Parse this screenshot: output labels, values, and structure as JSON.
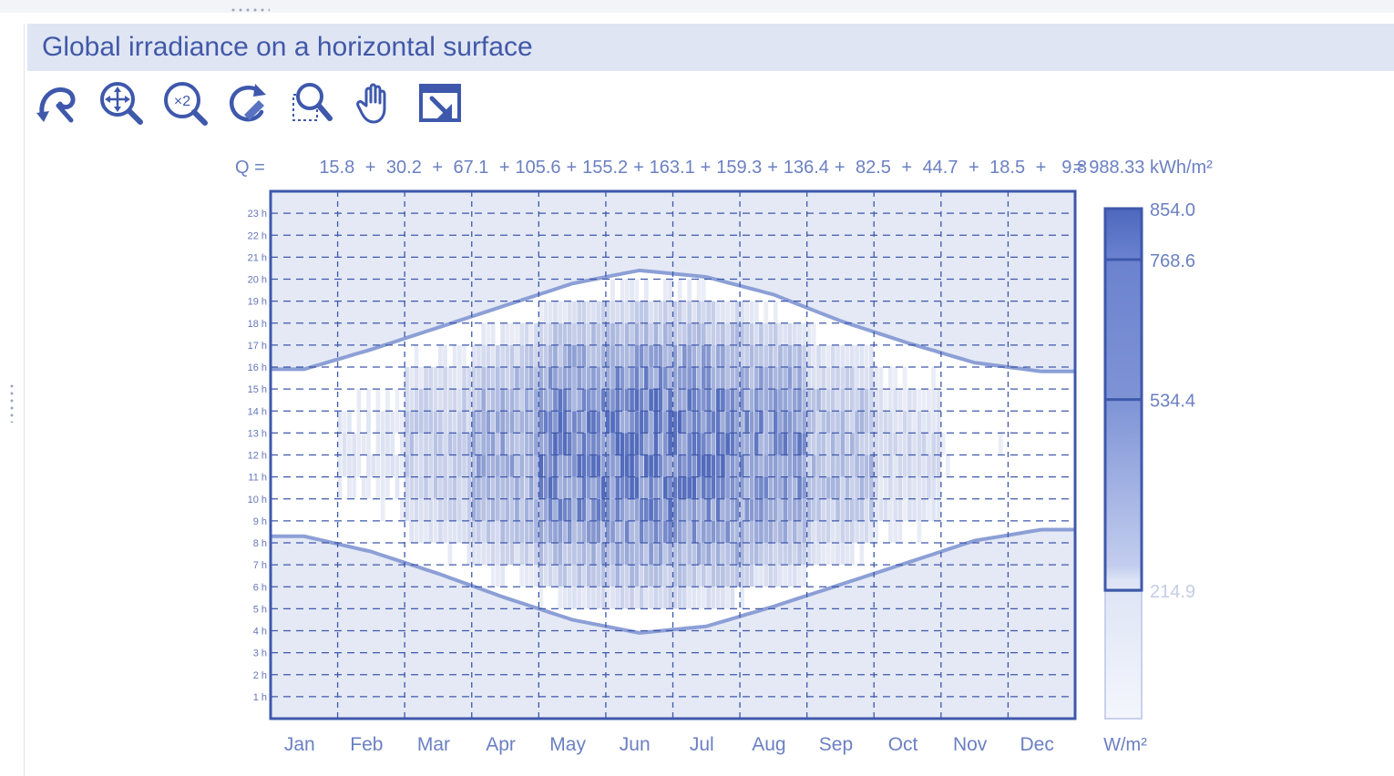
{
  "panel": {
    "title": "Global irradiance on a horizontal surface"
  },
  "toolbar": {
    "buttons": [
      {
        "icon": "rotate-back-icon"
      },
      {
        "icon": "zoom-all-icon"
      },
      {
        "icon": "zoom-x2-icon"
      },
      {
        "icon": "refresh-icon"
      },
      {
        "icon": "zoom-window-icon"
      },
      {
        "icon": "pan-hand-icon"
      },
      {
        "icon": "export-icon"
      }
    ]
  },
  "colors": {
    "accent": "#4a64b0",
    "title_bg": "#dfe5f3",
    "frame": "#3e58ab",
    "night_shade": "#e4e9f5"
  },
  "chart_data": {
    "type": "heatmap",
    "title": "Global irradiance on a horizontal surface",
    "summary": {
      "prefix": "Q =",
      "terms": [
        "15.8",
        "30.2",
        "67.1",
        "105.6",
        "155.2",
        "163.1",
        "159.3",
        "136.4",
        "82.5",
        "44.7",
        "18.5",
        "9.8"
      ],
      "total": "= 988.33 kWh/m²"
    },
    "monthly_Q_kWh_m2": [
      15.8,
      30.2,
      67.1,
      105.6,
      155.2,
      163.1,
      159.3,
      136.4,
      82.5,
      44.7,
      18.5,
      9.8
    ],
    "total_Q_kWh_m2": 988.33,
    "x": {
      "categories": [
        "Jan",
        "Feb",
        "Mar",
        "Apr",
        "May",
        "Jun",
        "Jul",
        "Aug",
        "Sep",
        "Oct",
        "Nov",
        "Dec"
      ]
    },
    "y": {
      "labels": [
        "1 h",
        "2 h",
        "3 h",
        "4 h",
        "5 h",
        "6 h",
        "7 h",
        "8 h",
        "9 h",
        "10 h",
        "11 h",
        "12 h",
        "13 h",
        "14 h",
        "15 h",
        "16 h",
        "17 h",
        "18 h",
        "19 h",
        "20 h",
        "21 h",
        "22 h",
        "23 h"
      ],
      "range": [
        0,
        24
      ]
    },
    "sunrise_hour_by_month": [
      8.3,
      7.6,
      6.6,
      5.5,
      4.5,
      3.9,
      4.2,
      5.1,
      6.1,
      7.1,
      8.1,
      8.6
    ],
    "sunset_hour_by_month": [
      15.9,
      16.8,
      17.8,
      18.8,
      19.8,
      20.4,
      20.1,
      19.3,
      18.1,
      17.1,
      16.2,
      15.8
    ],
    "colorbar": {
      "unit": "W/m²",
      "ticks": [
        {
          "value": 854.0,
          "label": "854.0"
        },
        {
          "value": 768.6,
          "label": "768.6"
        },
        {
          "value": 534.4,
          "label": "534.4"
        },
        {
          "value": 214.9,
          "label": "214.9"
        }
      ],
      "range": [
        0,
        854.0
      ]
    },
    "grid": true
  }
}
